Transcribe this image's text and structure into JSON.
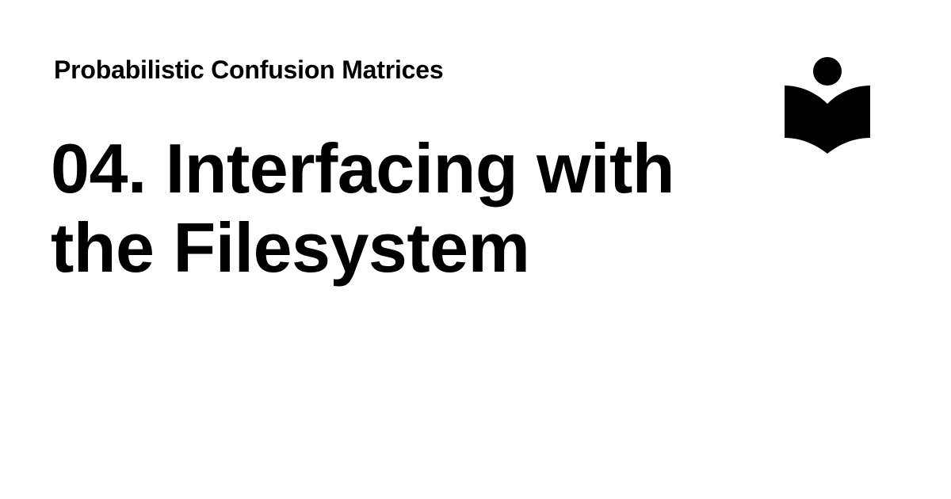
{
  "header": {
    "site_title": "Probabilistic Confusion Matrices"
  },
  "main": {
    "title_line_1": "04. Interfacing with",
    "title_line_2": "the Filesystem"
  },
  "logo": {
    "icon": "reading-person-book-icon",
    "color": "#000000"
  }
}
